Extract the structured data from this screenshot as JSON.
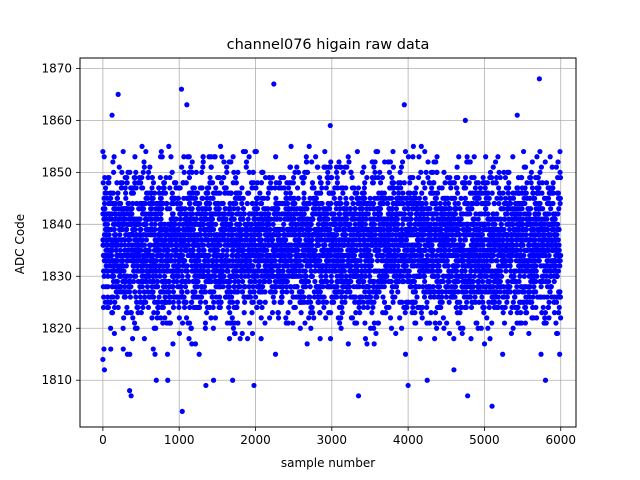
{
  "chart_data": {
    "type": "scatter",
    "title": "channel076 higain raw data",
    "xlabel": "sample number",
    "ylabel": "ADC Code",
    "xlim": [
      -300,
      6200
    ],
    "ylim": [
      1801,
      1872
    ],
    "xticks": [
      0,
      1000,
      2000,
      3000,
      4000,
      5000,
      6000
    ],
    "yticks": [
      1810,
      1820,
      1830,
      1840,
      1850,
      1860,
      1870
    ],
    "grid": true,
    "marker_color": "#0000ff",
    "n_samples": 6000,
    "series": [
      {
        "typical_range": [
          1815,
          1855
        ],
        "center_value": 1836,
        "highlighted_points": [
          {
            "x": 0,
            "y": 1854
          },
          {
            "x": 0,
            "y": 1814
          },
          {
            "x": 20,
            "y": 1812
          },
          {
            "x": 120,
            "y": 1861
          },
          {
            "x": 200,
            "y": 1865
          },
          {
            "x": 350,
            "y": 1808
          },
          {
            "x": 370,
            "y": 1807
          },
          {
            "x": 700,
            "y": 1810
          },
          {
            "x": 850,
            "y": 1810
          },
          {
            "x": 1030,
            "y": 1866
          },
          {
            "x": 1040,
            "y": 1804
          },
          {
            "x": 1100,
            "y": 1863
          },
          {
            "x": 1350,
            "y": 1809
          },
          {
            "x": 1450,
            "y": 1810
          },
          {
            "x": 1700,
            "y": 1810
          },
          {
            "x": 1980,
            "y": 1809
          },
          {
            "x": 2240,
            "y": 1867
          },
          {
            "x": 2980,
            "y": 1859
          },
          {
            "x": 3350,
            "y": 1807
          },
          {
            "x": 3950,
            "y": 1863
          },
          {
            "x": 4000,
            "y": 1809
          },
          {
            "x": 4250,
            "y": 1810
          },
          {
            "x": 4600,
            "y": 1812
          },
          {
            "x": 4780,
            "y": 1807
          },
          {
            "x": 4750,
            "y": 1860
          },
          {
            "x": 5100,
            "y": 1805
          },
          {
            "x": 5430,
            "y": 1861
          },
          {
            "x": 5720,
            "y": 1868
          },
          {
            "x": 5800,
            "y": 1810
          }
        ]
      }
    ]
  }
}
